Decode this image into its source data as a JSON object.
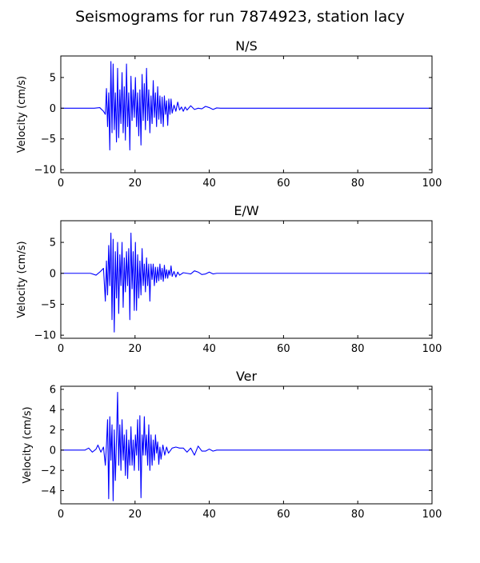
{
  "figure": {
    "title": "Seismograms for run 7874923, station lacy"
  },
  "chart_data": [
    {
      "type": "line",
      "title": "N/S",
      "xlabel": "",
      "ylabel": "Velocity (cm/s)",
      "xlim": [
        0,
        100
      ],
      "ylim": [
        -10.5,
        8.5
      ],
      "xticks": [
        0,
        20,
        40,
        60,
        80,
        100
      ],
      "yticks": [
        -10,
        -5,
        0,
        5
      ],
      "grid": false,
      "series": [
        {
          "color": "#0000ff",
          "x": [
            0,
            9,
            10.5,
            11.5,
            12.0,
            12.3,
            12.6,
            12.9,
            13.2,
            13.5,
            13.8,
            14.1,
            14.4,
            14.7,
            15.0,
            15.3,
            15.6,
            15.9,
            16.2,
            16.5,
            16.8,
            17.1,
            17.4,
            17.7,
            18.0,
            18.3,
            18.6,
            18.9,
            19.2,
            19.5,
            19.8,
            20.1,
            20.4,
            20.7,
            21.0,
            21.3,
            21.6,
            21.9,
            22.2,
            22.5,
            22.8,
            23.1,
            23.4,
            23.7,
            24.0,
            24.3,
            24.6,
            24.9,
            25.2,
            25.5,
            25.8,
            26.1,
            26.4,
            26.7,
            27.0,
            27.3,
            27.6,
            27.9,
            28.2,
            28.5,
            28.8,
            29.1,
            29.4,
            29.7,
            30.0,
            30.5,
            31.0,
            31.5,
            32.0,
            32.5,
            33.0,
            33.5,
            34.0,
            35.0,
            36.0,
            37.0,
            38.0,
            39.0,
            40.0,
            41.0,
            42.0,
            43.0,
            45.0,
            100.0
          ],
          "y": [
            0,
            0,
            0.1,
            -0.5,
            -1.0,
            3.2,
            -3.0,
            2.5,
            -6.8,
            7.6,
            -4.0,
            7.2,
            -3.5,
            2.5,
            -5.5,
            6.5,
            -4.8,
            3.0,
            -2.5,
            5.8,
            -4.0,
            3.5,
            -5.2,
            7.2,
            -3.0,
            2.5,
            -6.8,
            5.2,
            -2.0,
            3.0,
            -1.5,
            5.0,
            -3.0,
            2.5,
            -4.5,
            3.0,
            -6.0,
            5.5,
            -2.0,
            4.0,
            -3.5,
            6.5,
            -2.0,
            3.0,
            -4.0,
            2.0,
            -2.5,
            4.5,
            -1.5,
            2.5,
            -3.0,
            3.5,
            -1.8,
            2.0,
            -2.5,
            1.8,
            -3.0,
            2.0,
            -1.0,
            1.2,
            -2.8,
            1.5,
            -1.0,
            1.5,
            -0.8,
            0.5,
            -0.5,
            1.0,
            -0.3,
            0.2,
            -0.5,
            0.2,
            -0.3,
            0.4,
            -0.2,
            0,
            -0.1,
            0.3,
            0.1,
            -0.2,
            0.05,
            0,
            0,
            0
          ]
        }
      ]
    },
    {
      "type": "line",
      "title": "E/W",
      "xlabel": "",
      "ylabel": "Velocity (cm/s)",
      "xlim": [
        0,
        100
      ],
      "ylim": [
        -10.5,
        8.5
      ],
      "xticks": [
        0,
        20,
        40,
        60,
        80,
        100
      ],
      "yticks": [
        -10,
        -5,
        0,
        5
      ],
      "grid": false,
      "series": [
        {
          "color": "#0000ff",
          "x": [
            0,
            8,
            9.5,
            10.5,
            11.5,
            12.0,
            12.3,
            12.6,
            12.9,
            13.2,
            13.5,
            13.8,
            14.1,
            14.4,
            14.7,
            15.0,
            15.3,
            15.6,
            15.9,
            16.2,
            16.5,
            16.8,
            17.1,
            17.4,
            17.7,
            18.0,
            18.3,
            18.6,
            18.9,
            19.2,
            19.5,
            19.8,
            20.1,
            20.4,
            20.7,
            21.0,
            21.3,
            21.6,
            21.9,
            22.2,
            22.5,
            22.8,
            23.1,
            23.4,
            23.7,
            24.0,
            24.3,
            24.6,
            24.9,
            25.2,
            25.5,
            25.8,
            26.1,
            26.4,
            26.7,
            27.0,
            27.3,
            27.6,
            27.9,
            28.2,
            28.5,
            28.8,
            29.1,
            29.4,
            29.7,
            30.0,
            30.5,
            31.0,
            31.5,
            32.0,
            33.0,
            34.0,
            35.0,
            36.0,
            37.0,
            38.0,
            39.0,
            40.0,
            41.0,
            42.0,
            44.0,
            100.0
          ],
          "y": [
            0,
            0,
            -0.3,
            0.2,
            0.8,
            -4.5,
            2.0,
            -3.5,
            4.5,
            -2.0,
            6.5,
            -7.5,
            5.5,
            -9.5,
            3.5,
            -4.0,
            5.0,
            -6.5,
            3.0,
            -2.0,
            5.0,
            -5.5,
            2.5,
            -3.0,
            3.5,
            -2.0,
            4.0,
            -7.5,
            6.5,
            -2.5,
            3.5,
            -6.0,
            5.0,
            -6.0,
            3.0,
            -4.0,
            2.0,
            -3.5,
            4.0,
            -2.0,
            1.5,
            -3.0,
            2.5,
            -2.0,
            1.5,
            -4.5,
            1.5,
            -1.0,
            1.5,
            -2.0,
            1.0,
            -1.5,
            1.0,
            -1.2,
            1.5,
            -1.0,
            0.8,
            -1.3,
            1.3,
            -0.8,
            0.6,
            -0.8,
            0.5,
            -0.3,
            1.2,
            -0.5,
            0.3,
            -0.6,
            0.2,
            -0.3,
            0.1,
            0,
            -0.1,
            0.4,
            0.2,
            -0.2,
            -0.1,
            0.2,
            -0.1,
            0,
            0,
            0
          ]
        }
      ]
    },
    {
      "type": "line",
      "title": "Ver",
      "xlabel": "",
      "ylabel": "Velocity (cm/s)",
      "xlim": [
        0,
        100
      ],
      "ylim": [
        -5.3,
        6.3
      ],
      "xticks": [
        0,
        20,
        40,
        60,
        80,
        100
      ],
      "yticks": [
        -4,
        -2,
        0,
        2,
        4,
        6
      ],
      "grid": false,
      "series": [
        {
          "color": "#0000ff",
          "x": [
            0,
            6.5,
            7.5,
            8.5,
            9.5,
            10.0,
            10.8,
            11.5,
            12.0,
            12.3,
            12.6,
            12.9,
            13.2,
            13.5,
            13.8,
            14.1,
            14.4,
            14.7,
            15.0,
            15.3,
            15.6,
            15.9,
            16.2,
            16.5,
            16.8,
            17.1,
            17.4,
            17.7,
            18.0,
            18.3,
            18.6,
            18.9,
            19.2,
            19.5,
            19.8,
            20.1,
            20.4,
            20.7,
            21.0,
            21.3,
            21.6,
            21.9,
            22.2,
            22.5,
            22.8,
            23.1,
            23.4,
            23.7,
            24.0,
            24.3,
            24.6,
            24.9,
            25.2,
            25.5,
            25.8,
            26.1,
            26.4,
            26.7,
            27.0,
            27.5,
            28.0,
            28.5,
            29.0,
            30.0,
            31.0,
            32.0,
            33.0,
            34.0,
            35.0,
            36.0,
            37.0,
            38.0,
            39.0,
            40.0,
            41.0,
            42.0,
            44.0,
            100.0
          ],
          "y": [
            0,
            0,
            0.2,
            -0.2,
            0.1,
            0.5,
            -0.2,
            0.3,
            -1.5,
            0.5,
            3.0,
            -4.8,
            3.3,
            -1.0,
            2.5,
            -5.0,
            2.0,
            -3.0,
            1.0,
            5.7,
            -1.5,
            2.5,
            -2.0,
            3.0,
            -1.0,
            1.5,
            -2.5,
            2.0,
            -2.8,
            1.0,
            -1.5,
            2.3,
            -1.5,
            1.0,
            -2.0,
            1.5,
            -0.5,
            3.0,
            -2.0,
            3.4,
            -4.7,
            1.5,
            -0.5,
            3.3,
            -0.5,
            1.5,
            -1.5,
            2.5,
            -2.0,
            1.5,
            -1.5,
            1.0,
            -1.0,
            1.5,
            -0.3,
            0.8,
            -1.4,
            0.3,
            -0.9,
            0.5,
            -0.5,
            0.3,
            -0.3,
            0.2,
            0.3,
            0.2,
            0.2,
            -0.2,
            0.2,
            -0.5,
            0.4,
            -0.1,
            -0.1,
            0.1,
            -0.1,
            0,
            0,
            0
          ]
        }
      ]
    }
  ]
}
